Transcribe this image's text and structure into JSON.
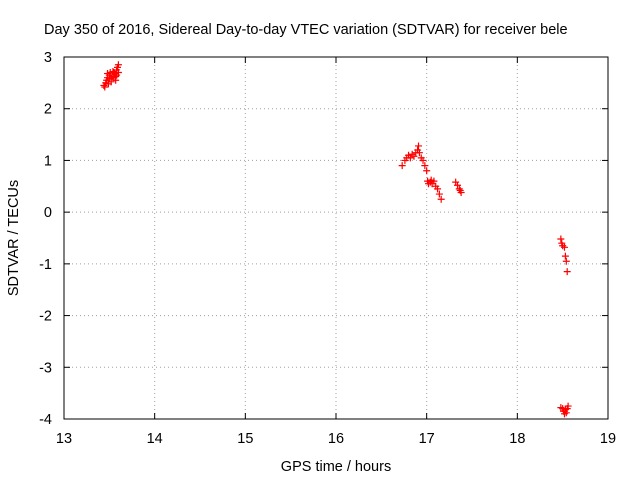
{
  "chart_data": {
    "type": "scatter",
    "title": "Day 350 of 2016, Sidereal Day-to-day VTEC variation (SDTVAR) for receiver bele",
    "xlabel": "GPS time / hours",
    "ylabel": "SDTVAR / TECUs",
    "xlim": [
      13,
      19
    ],
    "ylim": [
      -4,
      3
    ],
    "xticks": [
      13,
      14,
      15,
      16,
      17,
      18,
      19
    ],
    "yticks": [
      -4,
      -3,
      -2,
      -1,
      0,
      1,
      2,
      3
    ],
    "grid": true,
    "marker": "+",
    "color": "#ff0000",
    "series": [
      {
        "name": "SDTVAR",
        "points": [
          [
            13.44,
            2.45
          ],
          [
            13.45,
            2.42
          ],
          [
            13.46,
            2.5
          ],
          [
            13.47,
            2.55
          ],
          [
            13.48,
            2.6
          ],
          [
            13.49,
            2.48
          ],
          [
            13.5,
            2.65
          ],
          [
            13.5,
            2.58
          ],
          [
            13.51,
            2.7
          ],
          [
            13.52,
            2.52
          ],
          [
            13.53,
            2.62
          ],
          [
            13.54,
            2.72
          ],
          [
            13.55,
            2.6
          ],
          [
            13.56,
            2.68
          ],
          [
            13.57,
            2.55
          ],
          [
            13.58,
            2.75
          ],
          [
            13.58,
            2.65
          ],
          [
            13.59,
            2.8
          ],
          [
            13.6,
            2.7
          ],
          [
            13.6,
            2.85
          ],
          [
            13.48,
            2.68
          ],
          [
            13.52,
            2.58
          ],
          [
            13.55,
            2.7
          ],
          [
            13.57,
            2.62
          ],
          [
            16.73,
            0.9
          ],
          [
            16.76,
            1.0
          ],
          [
            16.78,
            1.05
          ],
          [
            16.8,
            1.1
          ],
          [
            16.82,
            1.05
          ],
          [
            16.84,
            1.12
          ],
          [
            16.86,
            1.08
          ],
          [
            16.88,
            1.15
          ],
          [
            16.9,
            1.2
          ],
          [
            16.91,
            1.28
          ],
          [
            16.92,
            1.15
          ],
          [
            16.94,
            1.05
          ],
          [
            16.96,
            1.0
          ],
          [
            16.98,
            0.9
          ],
          [
            17.0,
            0.8
          ],
          [
            17.01,
            0.6
          ],
          [
            17.02,
            0.55
          ],
          [
            17.04,
            0.58
          ],
          [
            17.05,
            0.62
          ],
          [
            17.06,
            0.55
          ],
          [
            17.08,
            0.6
          ],
          [
            17.1,
            0.5
          ],
          [
            17.12,
            0.45
          ],
          [
            17.14,
            0.35
          ],
          [
            17.16,
            0.25
          ],
          [
            17.32,
            0.58
          ],
          [
            17.34,
            0.52
          ],
          [
            17.36,
            0.45
          ],
          [
            17.37,
            0.42
          ],
          [
            17.38,
            0.38
          ],
          [
            18.48,
            -0.52
          ],
          [
            18.49,
            -0.6
          ],
          [
            18.5,
            -0.65
          ],
          [
            18.52,
            -0.68
          ],
          [
            18.53,
            -0.85
          ],
          [
            18.54,
            -0.95
          ],
          [
            18.55,
            -1.15
          ],
          [
            18.48,
            -3.78
          ],
          [
            18.5,
            -3.8
          ],
          [
            18.51,
            -3.85
          ],
          [
            18.52,
            -3.9
          ],
          [
            18.53,
            -3.82
          ],
          [
            18.54,
            -3.88
          ],
          [
            18.56,
            -3.75
          ],
          [
            18.55,
            -3.8
          ]
        ]
      }
    ]
  }
}
